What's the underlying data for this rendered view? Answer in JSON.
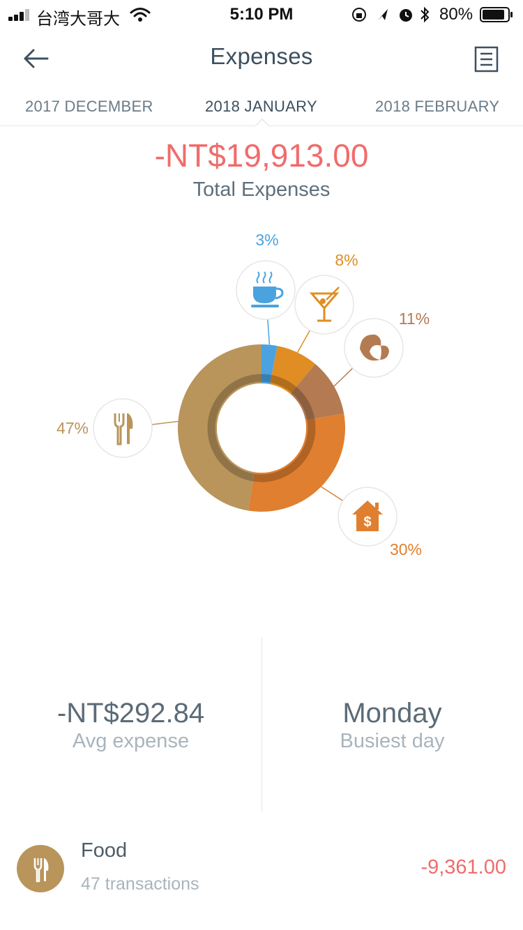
{
  "status_bar": {
    "carrier": "台湾大哥大",
    "time": "5:10 PM",
    "battery": "80%"
  },
  "header": {
    "title": "Expenses",
    "back_icon": "arrow-left-icon",
    "report_icon": "document-list-icon"
  },
  "month_tabs": [
    {
      "label": "2017 DECEMBER"
    },
    {
      "label": "2018 JANUARY",
      "active": true
    },
    {
      "label": "2018 FEBRUARY"
    }
  ],
  "summary": {
    "total": "-NT$19,913.00",
    "total_label": "Total Expenses"
  },
  "chart_data": {
    "type": "pie",
    "variant": "donut",
    "slices": [
      {
        "label": "3%",
        "value": 3,
        "icon": "coffee-icon",
        "color": "#4aa3df"
      },
      {
        "label": "8%",
        "value": 8,
        "icon": "cocktail-icon",
        "color": "#e08e23"
      },
      {
        "label": "11%",
        "value": 11,
        "icon": "croissant-icon",
        "color": "#b47a52"
      },
      {
        "label": "30%",
        "value": 30,
        "icon": "house-dollar-icon",
        "color": "#e07f2f"
      },
      {
        "label": "47%",
        "value": 47,
        "icon": "fork-knife-icon",
        "color": "#b9955b"
      }
    ]
  },
  "stats": {
    "avg_value": "-NT$292.84",
    "avg_label": "Avg expense",
    "busiest_value": "Monday",
    "busiest_label": "Busiest day"
  },
  "categories": [
    {
      "name": "Food",
      "count": "47 transactions",
      "amount": "-9,361.00",
      "icon": "fork-knife-icon"
    }
  ]
}
